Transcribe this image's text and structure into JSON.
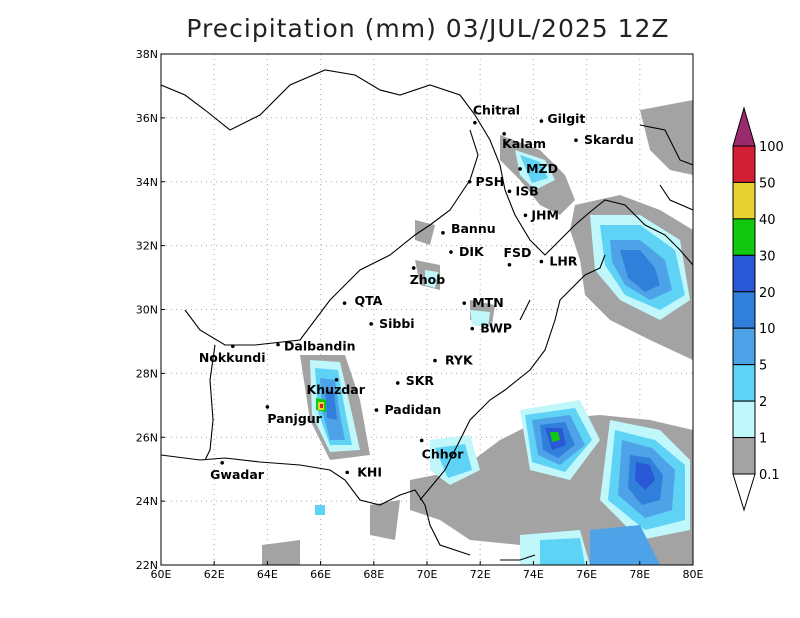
{
  "title": "Precipitation (mm) 03/JUL/2025 12Z",
  "axes": {
    "x_ticks": [
      "60E",
      "62E",
      "64E",
      "66E",
      "68E",
      "70E",
      "72E",
      "74E",
      "76E",
      "78E",
      "80E"
    ],
    "y_ticks": [
      "22N",
      "24N",
      "26N",
      "28N",
      "30N",
      "32N",
      "34N",
      "36N",
      "38N"
    ],
    "lon_range": [
      60,
      80
    ],
    "lat_range": [
      22,
      38
    ],
    "gridlines": "dotted"
  },
  "colorbar": {
    "levels": [
      "100",
      "50",
      "40",
      "30",
      "20",
      "10",
      "5",
      "2",
      "1",
      "0.1"
    ],
    "colors": [
      "#d21f35",
      "#e7d232",
      "#11c80f",
      "#2a58d6",
      "#2f7fdb",
      "#4ea3e8",
      "#5ed3f5",
      "#bff7fb",
      "#a3a3a3"
    ],
    "top_arrow_color": "#9b2a6f",
    "bottom_arrow_color": "#ffffff"
  },
  "cities": [
    {
      "name": "Chitral",
      "lon": 71.8,
      "lat": 35.85
    },
    {
      "name": "Gilgit",
      "lon": 74.3,
      "lat": 35.9
    },
    {
      "name": "Kalam",
      "lon": 72.9,
      "lat": 35.5
    },
    {
      "name": "Skardu",
      "lon": 75.6,
      "lat": 35.3
    },
    {
      "name": "MZD",
      "lon": 73.5,
      "lat": 34.4
    },
    {
      "name": "PSH",
      "lon": 71.6,
      "lat": 34.0
    },
    {
      "name": "ISB",
      "lon": 73.1,
      "lat": 33.7
    },
    {
      "name": "JHM",
      "lon": 73.7,
      "lat": 32.95
    },
    {
      "name": "Bannu",
      "lon": 70.6,
      "lat": 32.4
    },
    {
      "name": "DIK",
      "lon": 70.9,
      "lat": 31.8
    },
    {
      "name": "FSD",
      "lon": 73.1,
      "lat": 31.4
    },
    {
      "name": "LHR",
      "lon": 74.3,
      "lat": 31.5
    },
    {
      "name": "Zhob",
      "lon": 69.5,
      "lat": 31.3
    },
    {
      "name": "QTA",
      "lon": 66.9,
      "lat": 30.2
    },
    {
      "name": "MTN",
      "lon": 71.4,
      "lat": 30.2
    },
    {
      "name": "Sibbi",
      "lon": 67.9,
      "lat": 29.55
    },
    {
      "name": "BWP",
      "lon": 71.7,
      "lat": 29.4
    },
    {
      "name": "Dalbandin",
      "lon": 64.4,
      "lat": 28.9
    },
    {
      "name": "Nokkundi",
      "lon": 62.7,
      "lat": 28.85
    },
    {
      "name": "RYK",
      "lon": 70.3,
      "lat": 28.4
    },
    {
      "name": "Khuzdar",
      "lon": 66.6,
      "lat": 27.8
    },
    {
      "name": "SKR",
      "lon": 68.9,
      "lat": 27.7
    },
    {
      "name": "Panjgur",
      "lon": 64.0,
      "lat": 26.95
    },
    {
      "name": "Padidan",
      "lon": 68.1,
      "lat": 26.85
    },
    {
      "name": "Chhor",
      "lon": 69.8,
      "lat": 25.9
    },
    {
      "name": "KHI",
      "lon": 67.0,
      "lat": 24.9
    },
    {
      "name": "Gwadar",
      "lon": 62.3,
      "lat": 25.2
    }
  ]
}
